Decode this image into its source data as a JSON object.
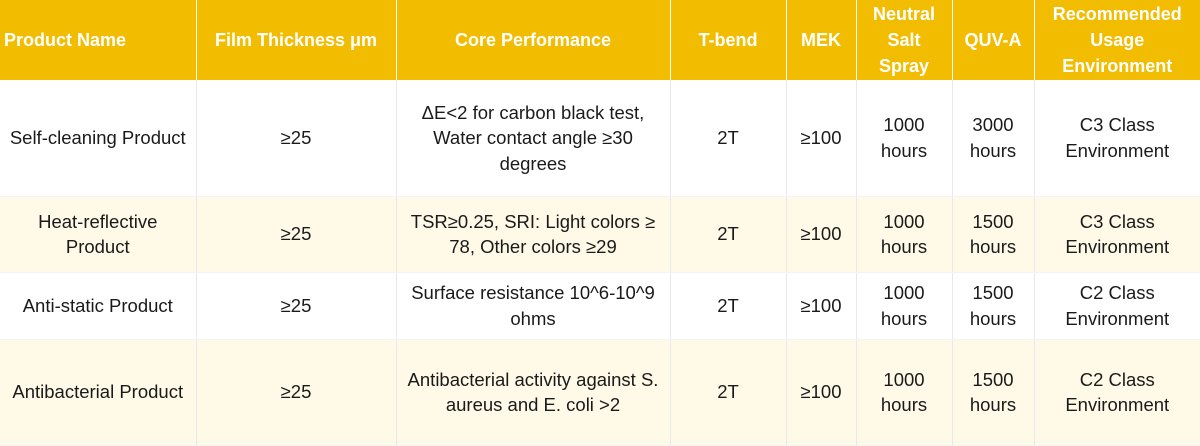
{
  "headers": {
    "product_name": "Product Name",
    "film_thickness": "Film Thickness μm",
    "core_performance": "Core Performance",
    "t_bend": "T-bend",
    "mek": "MEK",
    "neutral_salt_spray": "Neutral\nSalt\nSpray",
    "quv_a": "QUV-A",
    "recommended_usage": "Recommended\nUsage\nEnvironment"
  },
  "rows": [
    {
      "product_name": "Self-cleaning Product",
      "film_thickness": "≥25",
      "core_performance": "ΔE<2 for carbon black test,\nWater contact angle ≥30\ndegrees",
      "t_bend": "2T",
      "mek": "≥100",
      "neutral_salt_spray": "1000\nhours",
      "quv_a": "3000\nhours",
      "recommended_usage": "C3 Class\nEnvironment"
    },
    {
      "product_name": "Heat-reflective\nProduct",
      "film_thickness": "≥25",
      "core_performance": "TSR≥0.25, SRI: Light colors ≥\n78, Other colors ≥29",
      "t_bend": "2T",
      "mek": "≥100",
      "neutral_salt_spray": "1000\nhours",
      "quv_a": "1500\nhours",
      "recommended_usage": "C3 Class\nEnvironment"
    },
    {
      "product_name": "Anti-static Product",
      "film_thickness": "≥25",
      "core_performance": "Surface resistance 10^6-10^9\nohms",
      "t_bend": "2T",
      "mek": "≥100",
      "neutral_salt_spray": "1000\nhours",
      "quv_a": "1500\nhours",
      "recommended_usage": "C2 Class\nEnvironment"
    },
    {
      "product_name": "Antibacterial Product",
      "film_thickness": "≥25",
      "core_performance": "Antibacterial activity against S.\naureus and E. coli >2",
      "t_bend": "2T",
      "mek": "≥100",
      "neutral_salt_spray": "1000\nhours",
      "quv_a": "1500\nhours",
      "recommended_usage": "C2 Class\nEnvironment"
    }
  ],
  "colors": {
    "header_background": "#f2bd00",
    "header_text": "#ffffff",
    "alt_row_background": "#fff9e8"
  }
}
